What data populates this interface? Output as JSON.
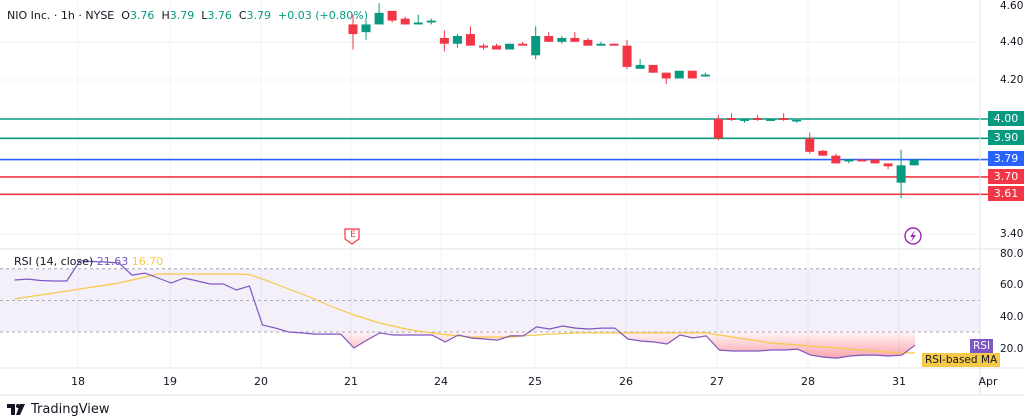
{
  "header": {
    "symbol": "NIO Inc.",
    "sep1": "·",
    "interval": "1h",
    "sep2": "·",
    "exchange": "NYSE",
    "open_label": "O",
    "open": "3.76",
    "high_label": "H",
    "high": "3.79",
    "low_label": "L",
    "low": "3.76",
    "close_label": "C",
    "close": "3.79",
    "change": "+0.03 (+0.80%)"
  },
  "rsi_legend": {
    "name": "RSI (14, close)",
    "rsi_value": "21.63",
    "ma_value": "16.70"
  },
  "price_axis": [
    "4.60",
    "4.40",
    "4.20",
    "3.40"
  ],
  "rsi_axis": [
    "80.00",
    "60.00",
    "40.00",
    "20.00"
  ],
  "date_axis": [
    "18",
    "19",
    "20",
    "21",
    "24",
    "25",
    "26",
    "27",
    "28",
    "31",
    "Apr"
  ],
  "levels": [
    {
      "value": "4.00",
      "color": "#089981"
    },
    {
      "value": "3.90",
      "color": "#089981"
    },
    {
      "value": "3.79",
      "color": "#2962ff"
    },
    {
      "value": "3.70",
      "color": "#f23645"
    },
    {
      "value": "3.61",
      "color": "#f23645"
    }
  ],
  "markers": {
    "earnings": "E",
    "dividend_icon": "lightning-icon"
  },
  "badges": {
    "rsi": "RSI",
    "ma": "RSI-based MA"
  },
  "footer": {
    "brand": "TradingView"
  },
  "colors": {
    "up": "#089981",
    "down": "#f23645",
    "rsi": "#7e57c2",
    "ma": "#f7c948",
    "band": "#7e57c2"
  },
  "chart_data": [
    {
      "type": "candlestick",
      "title": "NIO Inc. · 1h · NYSE",
      "ylim": [
        3.4,
        4.6
      ],
      "candles_ohlc": [
        [
          4.49,
          4.54,
          4.36,
          4.44
        ],
        [
          4.45,
          4.51,
          4.41,
          4.49
        ],
        [
          4.49,
          4.6,
          4.49,
          4.55
        ],
        [
          4.56,
          4.56,
          4.5,
          4.51
        ],
        [
          4.52,
          4.53,
          4.49,
          4.49
        ],
        [
          4.49,
          4.54,
          4.49,
          4.5
        ],
        [
          4.5,
          4.52,
          4.49,
          4.51
        ],
        [
          4.42,
          4.46,
          4.35,
          4.39
        ],
        [
          4.39,
          4.44,
          4.37,
          4.43
        ],
        [
          4.44,
          4.48,
          4.38,
          4.38
        ],
        [
          4.38,
          4.39,
          4.36,
          4.37
        ],
        [
          4.38,
          4.39,
          4.36,
          4.36
        ],
        [
          4.36,
          4.39,
          4.36,
          4.39
        ],
        [
          4.39,
          4.4,
          4.38,
          4.38
        ],
        [
          4.33,
          4.48,
          4.31,
          4.43
        ],
        [
          4.43,
          4.45,
          4.4,
          4.4
        ],
        [
          4.4,
          4.43,
          4.39,
          4.42
        ],
        [
          4.42,
          4.45,
          4.4,
          4.4
        ],
        [
          4.41,
          4.42,
          4.38,
          4.38
        ],
        [
          4.38,
          4.4,
          4.38,
          4.39
        ],
        [
          4.39,
          4.39,
          4.38,
          4.38
        ],
        [
          4.38,
          4.41,
          4.26,
          4.27
        ],
        [
          4.26,
          4.31,
          4.26,
          4.28
        ],
        [
          4.28,
          4.28,
          4.24,
          4.24
        ],
        [
          4.24,
          4.24,
          4.18,
          4.21
        ],
        [
          4.21,
          4.25,
          4.21,
          4.25
        ],
        [
          4.25,
          4.25,
          4.21,
          4.21
        ],
        [
          4.22,
          4.24,
          4.22,
          4.23
        ],
        [
          4.0,
          4.02,
          3.89,
          3.9
        ],
        [
          4.005,
          4.03,
          3.99,
          3.995
        ],
        [
          3.99,
          4.0,
          3.98,
          4.0
        ],
        [
          4.005,
          4.02,
          3.99,
          3.995
        ],
        [
          3.99,
          4.0,
          3.99,
          4.0
        ],
        [
          4.005,
          4.03,
          3.99,
          3.995
        ],
        [
          3.99,
          4.0,
          3.98,
          3.995
        ],
        [
          3.9,
          3.93,
          3.82,
          3.83
        ],
        [
          3.835,
          3.84,
          3.81,
          3.81
        ],
        [
          3.81,
          3.82,
          3.77,
          3.77
        ],
        [
          3.78,
          3.79,
          3.77,
          3.79
        ],
        [
          3.79,
          3.79,
          3.78,
          3.78
        ],
        [
          3.79,
          3.79,
          3.77,
          3.77
        ],
        [
          3.77,
          3.77,
          3.74,
          3.755
        ],
        [
          3.67,
          3.84,
          3.59,
          3.76
        ],
        [
          3.76,
          3.79,
          3.76,
          3.79
        ]
      ]
    },
    {
      "type": "line",
      "title": "RSI (14, close)",
      "ylim": [
        0,
        80
      ],
      "bands": [
        30,
        50,
        70
      ],
      "series": [
        {
          "name": "RSI",
          "values": [
            62.9,
            63.5,
            62.6,
            62.3,
            62.3,
            75,
            74.6,
            74.3,
            73.7,
            66,
            67.3,
            64.2,
            61,
            64.2,
            62.3,
            60.4,
            60.4,
            56.6,
            59.1,
            34.4,
            32.5,
            30,
            29.4,
            28.7,
            28.7,
            28.7,
            19.9,
            24.9,
            29.4,
            28.1,
            28.1,
            28.1,
            28.1,
            23.7,
            28.1,
            26.2,
            25.6,
            24.9,
            27.5,
            27.5,
            33.2,
            31.9,
            33.8,
            32.5,
            31.9,
            32.5,
            32.5,
            25.6,
            24.3,
            23.7,
            22.4,
            28.1,
            26.2,
            27.5,
            18.6,
            18,
            18,
            18,
            18.6,
            18.6,
            19.2,
            15.4,
            14.1,
            13.5,
            14.8,
            15.4,
            15.4,
            14.8,
            15.4,
            21.63
          ]
        },
        {
          "name": "RSI-based MA",
          "values": [
            50.9,
            52.2,
            53.4,
            54.7,
            55.9,
            57.2,
            58.5,
            59.7,
            61,
            62.9,
            64.8,
            66.7,
            66.7,
            66.7,
            66.7,
            66.7,
            66.7,
            66.7,
            66.4,
            63.5,
            60.4,
            57.2,
            54.1,
            50.9,
            47.1,
            43.9,
            40.8,
            38.2,
            35.7,
            33.8,
            31.9,
            30.6,
            29.4,
            28.4,
            27.5,
            26.8,
            26.8,
            26.8,
            26.8,
            27.5,
            28.1,
            28.7,
            29,
            29.4,
            29.4,
            29.4,
            29.4,
            29.4,
            29.4,
            29.4,
            29.4,
            29.4,
            29.4,
            29.4,
            28.1,
            26.8,
            25.6,
            24.3,
            23,
            22.4,
            21.8,
            21.1,
            20.5,
            19.9,
            19.2,
            18.6,
            18,
            17.3,
            16.9,
            16.7
          ]
        }
      ]
    }
  ]
}
